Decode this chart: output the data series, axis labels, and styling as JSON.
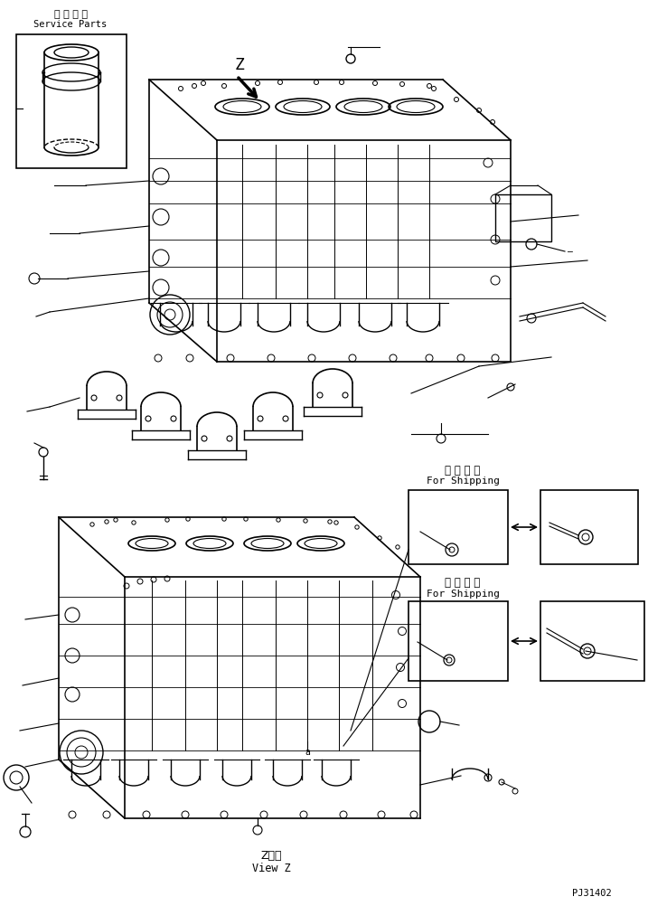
{
  "title": "",
  "bg_color": "#ffffff",
  "line_color": "#000000",
  "fig_width": 7.17,
  "fig_height": 10.02,
  "dpi": 100,
  "service_parts_label_jp": "補 給 専 用",
  "service_parts_label_en": "Service Parts",
  "for_shipping_label_jp": "運 搬 部 品",
  "for_shipping_label_en": "For Shipping",
  "view_z_label_jp": "Z　視",
  "view_z_label_en": "View Z",
  "part_number": "PJ31402"
}
